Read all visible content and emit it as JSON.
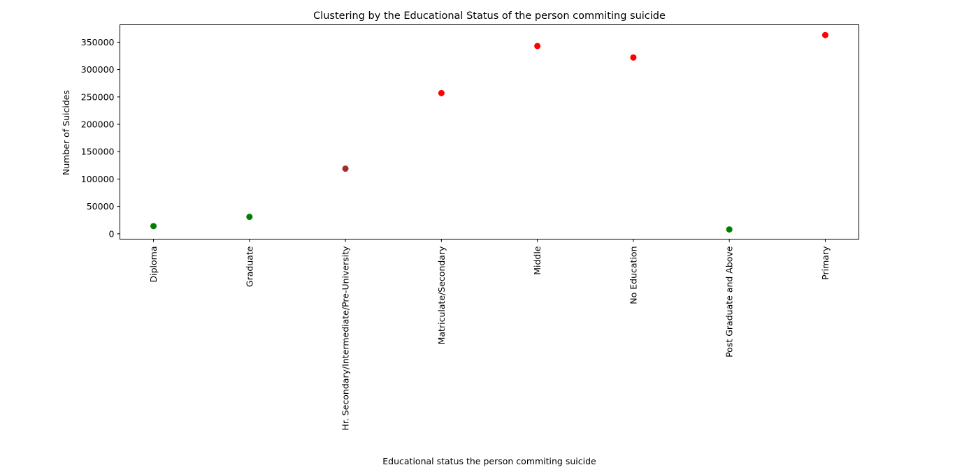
{
  "chart_data": {
    "type": "scatter",
    "title": "Clustering by the Educational Status of the person commiting suicide",
    "xlabel": "Educational status the person commiting suicide",
    "ylabel": "Number of Suicides",
    "categories": [
      "Diploma",
      "Graduate",
      "Hr. Secondary/Intermediate/Pre-University",
      "Matriculate/Secondary",
      "Middle",
      "No Education",
      "Post Graduate and Above",
      "Primary"
    ],
    "values": [
      14000,
      31000,
      119000,
      257000,
      343000,
      322000,
      8000,
      363000
    ],
    "point_colors": [
      "#008000",
      "#008000",
      "#a52a2a",
      "#ff0000",
      "#ff0000",
      "#ff0000",
      "#008000",
      "#ff0000"
    ],
    "yticks": [
      0,
      50000,
      100000,
      150000,
      200000,
      250000,
      300000,
      350000
    ],
    "ylim": [
      -9771,
      381771
    ],
    "grid": false,
    "legend": "none"
  }
}
